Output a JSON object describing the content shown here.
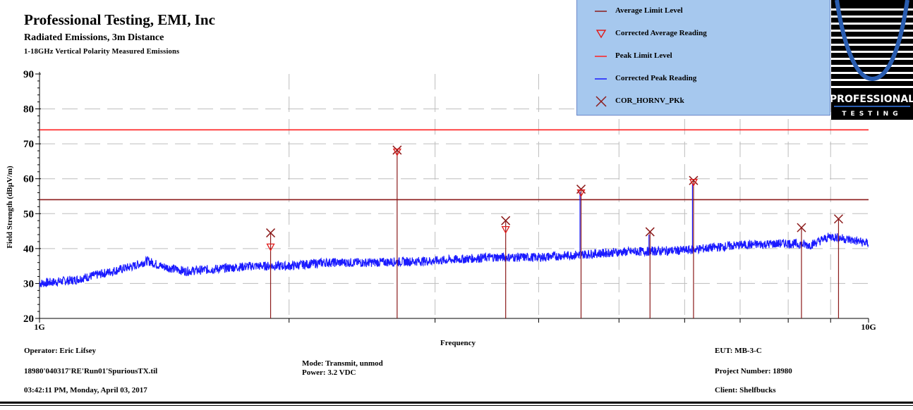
{
  "header": {
    "company": "Professional Testing, EMI, Inc",
    "subtitle": "Radiated Emissions, 3m Distance",
    "measurement": "1-18GHz Vertical Polarity Measured Emissions"
  },
  "legend": {
    "items": [
      {
        "label": "Average Limit Level",
        "symbol": "line",
        "color": "#8b1a1a"
      },
      {
        "label": "Corrected Average Reading",
        "symbol": "triangle",
        "color": "#e01b1b"
      },
      {
        "label": "Peak Limit Level",
        "symbol": "line",
        "color": "#ff2020"
      },
      {
        "label": "Corrected Peak Reading",
        "symbol": "line",
        "color": "#1a1aff"
      },
      {
        "label": "COR_HORNV_PKk",
        "symbol": "cross",
        "color": "#8b1a1a"
      }
    ]
  },
  "logo": {
    "text_main": "PROFESSIONAL",
    "text_sub": "TESTING"
  },
  "footer": {
    "operator": "Operator: Eric Lifsey",
    "file": "18980'040317'RE'Run01'SpuriousTX.til",
    "datetime": "03:42:11 PM, Monday, April 03, 2017",
    "mode": "Mode: Transmit, unmod",
    "power": "Power: 3.2 VDC",
    "eut": "EUT: MB-3-C",
    "project": "Project Number: 18980",
    "client": "Client: Shelfbucks"
  },
  "chart_data": {
    "type": "line",
    "xlabel": "Frequency",
    "ylabel": "Field Strength (dBµV/m)",
    "xscale": "log",
    "xlim": [
      1,
      10
    ],
    "ylim": [
      20,
      90
    ],
    "x_tick_labels": [
      "1G",
      "10G"
    ],
    "y_ticks": [
      20,
      30,
      40,
      50,
      60,
      70,
      80,
      90
    ],
    "grid": true,
    "legend_position": "top-right",
    "limits": [
      {
        "name": "Peak Limit Level",
        "value": 74
      },
      {
        "name": "Average Limit Level",
        "value": 54
      }
    ],
    "noise_floor": {
      "name": "Corrected Peak Reading",
      "x": [
        1.0,
        1.1,
        1.2,
        1.3,
        1.35,
        1.4,
        1.5,
        1.6,
        1.8,
        2.0,
        2.2,
        2.5,
        3.0,
        3.5,
        4.0,
        5.0,
        6.0,
        7.0,
        8.0,
        8.5,
        9.0,
        9.5,
        10.0
      ],
      "y": [
        30,
        31,
        33,
        35,
        36.5,
        35,
        33.5,
        34,
        35,
        35,
        36,
        36,
        36.5,
        37.5,
        37.5,
        39,
        39.5,
        41,
        41.5,
        41,
        43.5,
        42.5,
        41.5
      ]
    },
    "emissions": [
      {
        "freq": 1.9,
        "peak": 44.5,
        "average": 40.5
      },
      {
        "freq": 2.7,
        "peak": 68.2,
        "average": 67.7
      },
      {
        "freq": 3.65,
        "peak": 48.0,
        "average": 45.5
      },
      {
        "freq": 4.5,
        "peak": 57.0,
        "average": 56.0
      },
      {
        "freq": 5.45,
        "peak": 44.8,
        "average": null
      },
      {
        "freq": 6.15,
        "peak": 59.5,
        "average": 59.0
      },
      {
        "freq": 8.3,
        "peak": 46.0,
        "average": null
      },
      {
        "freq": 9.2,
        "peak": 48.5,
        "average": null
      }
    ]
  }
}
